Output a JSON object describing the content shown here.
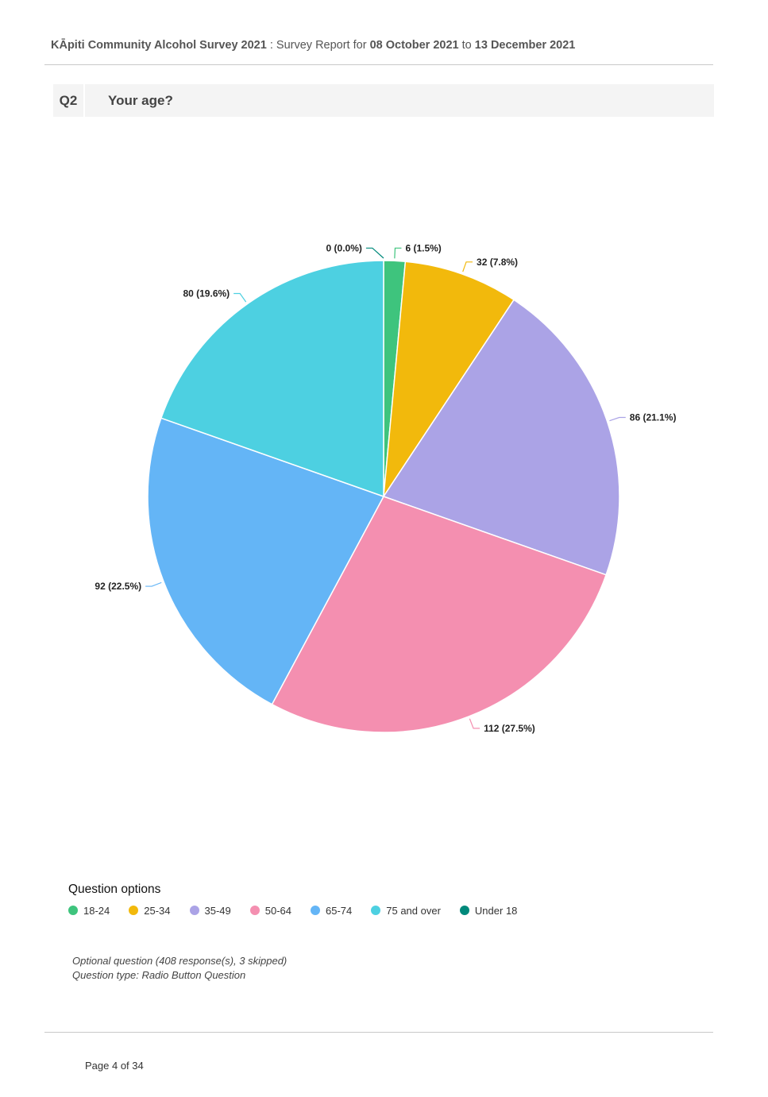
{
  "header": {
    "survey_name": "KĀpiti Community Alcohol Survey 2021",
    "separator": " : ",
    "report_prefix": "Survey Report for ",
    "start_date": "08 October 2021",
    "to_word": " to ",
    "end_date": "13 December 2021"
  },
  "question": {
    "number": "Q2",
    "text": "Your age?"
  },
  "chart_data": {
    "type": "pie",
    "start_angle": "12 o'clock, clockwise",
    "slices": [
      {
        "label": "Under 18",
        "value": 0,
        "percent": 0.0,
        "data_label": "0 (0.0%)",
        "color": "#00897b"
      },
      {
        "label": "18-24",
        "value": 6,
        "percent": 1.5,
        "data_label": "6 (1.5%)",
        "color": "#3ec47d"
      },
      {
        "label": "25-34",
        "value": 32,
        "percent": 7.8,
        "data_label": "32 (7.8%)",
        "color": "#f2b90c"
      },
      {
        "label": "35-49",
        "value": 86,
        "percent": 21.1,
        "data_label": "86 (21.1%)",
        "color": "#aba3e6"
      },
      {
        "label": "50-64",
        "value": 112,
        "percent": 27.5,
        "data_label": "112 (27.5%)",
        "color": "#f48fb0"
      },
      {
        "label": "65-74",
        "value": 92,
        "percent": 22.5,
        "data_label": "92 (22.5%)",
        "color": "#64b5f6"
      },
      {
        "label": "75 and over",
        "value": 80,
        "percent": 19.6,
        "data_label": "80 (19.6%)",
        "color": "#4dd0e1"
      }
    ]
  },
  "legend": {
    "title": "Question options",
    "items": [
      {
        "label": "18-24",
        "color": "#3ec47d"
      },
      {
        "label": "25-34",
        "color": "#f2b90c"
      },
      {
        "label": "35-49",
        "color": "#aba3e6"
      },
      {
        "label": "50-64",
        "color": "#f48fb0"
      },
      {
        "label": "65-74",
        "color": "#64b5f6"
      },
      {
        "label": "75 and over",
        "color": "#4dd0e1"
      },
      {
        "label": "Under 18",
        "color": "#00897b"
      }
    ]
  },
  "notes": {
    "line1": "Optional question (408 response(s), 3 skipped)",
    "line2": "Question type: Radio Button Question"
  },
  "footer": {
    "page": "Page 4 of 34"
  }
}
